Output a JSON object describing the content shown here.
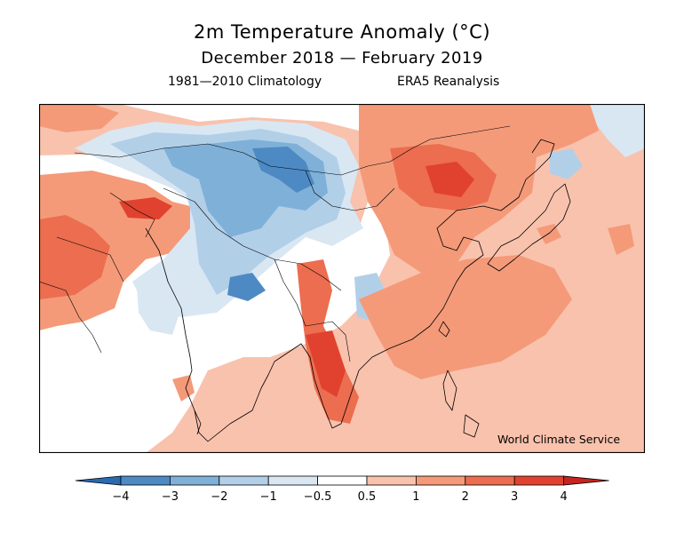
{
  "title": "2m Temperature Anomaly (°C)",
  "subtitle": "December 2018 — February 2019",
  "climatology_label": "1981—2010 Climatology",
  "source_label": "ERA5 Reanalysis",
  "credit": "World Climate Service",
  "colorbar": {
    "ticks": [
      "−4",
      "−3",
      "−2",
      "−1",
      "−0.5",
      "0.5",
      "1",
      "2",
      "3",
      "4"
    ],
    "colors": [
      "#2a6ab0",
      "#4d8ac4",
      "#7fb0d8",
      "#b2cfe8",
      "#d9e7f3",
      "#ffffff",
      "#f9c2ad",
      "#f49a79",
      "#ec6d4f",
      "#e0422f",
      "#c8231f"
    ]
  }
}
